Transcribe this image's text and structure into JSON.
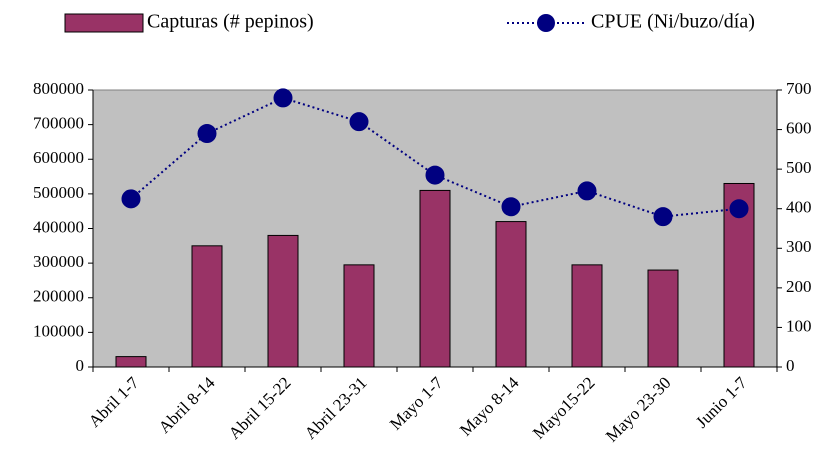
{
  "chart_data": {
    "type": "bar",
    "categories": [
      "Abril 1-7",
      "Abril 8-14",
      "Abril 15-22",
      "Abril 23-31",
      "Mayo 1-7",
      "Mayo 8-14",
      "Mayo15-22",
      "Mayo 23-30",
      "Junio 1-7"
    ],
    "series": [
      {
        "name": "Capturas (# pepinos)",
        "type": "bar",
        "color": "#993366",
        "values": [
          30000,
          350000,
          380000,
          295000,
          510000,
          420000,
          295000,
          280000,
          530000
        ]
      },
      {
        "name": "CPUE (Ni/buzo/día)",
        "type": "line",
        "axis": "y2",
        "color": "#000080",
        "values": [
          425,
          590,
          680,
          620,
          485,
          405,
          445,
          380,
          400
        ]
      }
    ],
    "ylim": [
      0,
      800000
    ],
    "yticks": [
      0,
      100000,
      200000,
      300000,
      400000,
      500000,
      600000,
      700000,
      800000
    ],
    "y2lim": [
      0,
      700
    ],
    "y2ticks": [
      0,
      100,
      200,
      300,
      400,
      500,
      600,
      700
    ],
    "plot_background": "#c0c0c0",
    "legend": "top"
  }
}
